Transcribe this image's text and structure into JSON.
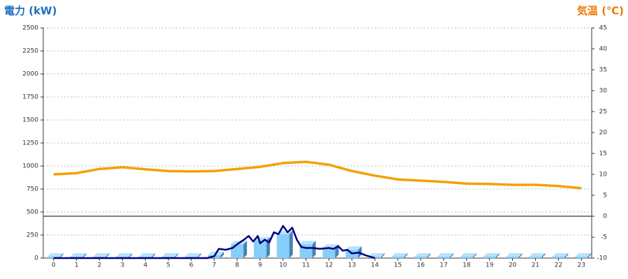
{
  "chart_data": {
    "type": "combo",
    "ylabel": "電力 (kW)",
    "y2label": "気温 (℃)",
    "xlim": [
      -0.45,
      23.45
    ],
    "xticks": [
      0,
      1,
      2,
      3,
      4,
      5,
      6,
      7,
      8,
      9,
      10,
      11,
      12,
      13,
      14,
      15,
      16,
      17,
      18,
      19,
      20,
      21,
      22,
      23
    ],
    "ylim": [
      0,
      2500
    ],
    "yticks": [
      0,
      250,
      500,
      750,
      1000,
      1250,
      1500,
      1750,
      2000,
      2250,
      2500
    ],
    "y2lim": [
      -10,
      45
    ],
    "y2ticks": [
      -10,
      -5,
      0,
      5,
      10,
      15,
      20,
      25,
      30,
      35,
      40,
      45
    ],
    "grid": true,
    "series": [
      {
        "type": "bar",
        "color": "#87cefa",
        "x": [
          0,
          1,
          2,
          3,
          4,
          5,
          6,
          7,
          8,
          9,
          10,
          11,
          12,
          13,
          14,
          15,
          16,
          17,
          18,
          19,
          20,
          21,
          22,
          23
        ],
        "values": [
          0,
          0,
          0,
          0,
          0,
          0,
          0,
          30,
          150,
          190,
          260,
          150,
          110,
          90,
          0,
          0,
          0,
          0,
          0,
          0,
          0,
          0,
          0,
          0
        ]
      },
      {
        "type": "line",
        "color": "#000080",
        "x": [
          0,
          6.7,
          7,
          7.2,
          7.5,
          7.8,
          8,
          8.3,
          8.5,
          8.7,
          8.9,
          9,
          9.2,
          9.4,
          9.6,
          9.8,
          10,
          10.2,
          10.4,
          10.6,
          10.8,
          11,
          11.3,
          11.6,
          12,
          12.2,
          12.4,
          12.6,
          12.8,
          13,
          13.3,
          13.6,
          14
        ],
        "values": [
          0,
          0,
          20,
          100,
          90,
          110,
          150,
          200,
          240,
          180,
          240,
          160,
          200,
          170,
          280,
          260,
          350,
          280,
          330,
          200,
          120,
          110,
          110,
          100,
          110,
          100,
          130,
          80,
          90,
          50,
          60,
          30,
          0
        ]
      },
      {
        "type": "line",
        "axis": "y2",
        "color": "#f5a000",
        "x": [
          0,
          1,
          2,
          3,
          4,
          5,
          6,
          7,
          8,
          9,
          10,
          11,
          12,
          13,
          14,
          15,
          16,
          17,
          18,
          19,
          20,
          21,
          22,
          23
        ],
        "values": [
          10,
          10.3,
          11.3,
          11.7,
          11.2,
          10.8,
          10.7,
          10.8,
          11.3,
          11.8,
          12.7,
          13,
          12.3,
          10.8,
          9.7,
          8.8,
          8.5,
          8.2,
          7.8,
          7.7,
          7.5,
          7.5,
          7.2,
          6.7
        ]
      }
    ]
  }
}
